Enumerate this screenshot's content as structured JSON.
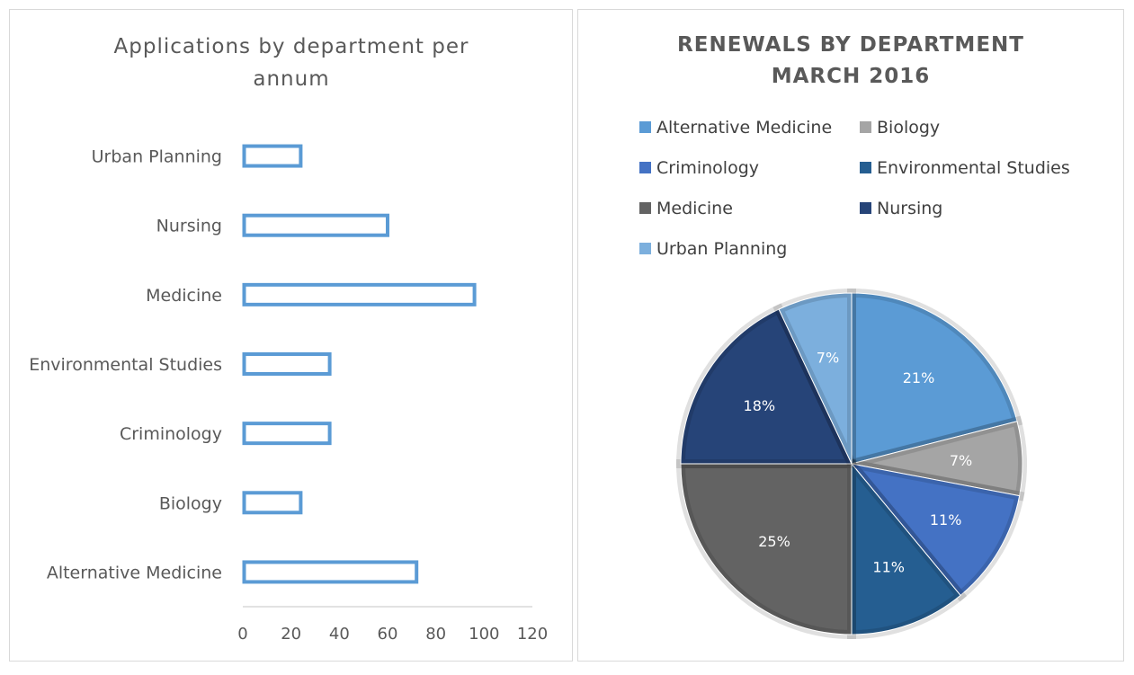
{
  "chart_data": [
    {
      "type": "bar",
      "orientation": "horizontal",
      "title": "Applications by department per annum",
      "categories": [
        "Urban Planning",
        "Nursing",
        "Medicine",
        "Environmental Studies",
        "Criminology",
        "Biology",
        "Alternative Medicine"
      ],
      "values": [
        24,
        60,
        96,
        36,
        36,
        24,
        72
      ],
      "xlim": [
        0,
        120
      ],
      "xticks": [
        0,
        20,
        40,
        60,
        80,
        100,
        120
      ],
      "grid": false,
      "bar_style": "outline",
      "bar_color": "#5b9bd5"
    },
    {
      "type": "pie",
      "title": [
        "RENEWALS BY DEPARTMENT",
        "MARCH 2016"
      ],
      "legend_position": "top",
      "slices": [
        {
          "name": "Alternative Medicine",
          "value": 21,
          "label": "21%",
          "color": "#5b9bd5"
        },
        {
          "name": "Biology",
          "value": 7,
          "label": "7%",
          "color": "#a5a5a5"
        },
        {
          "name": "Criminology",
          "value": 11,
          "label": "11%",
          "color": "#4472c4"
        },
        {
          "name": "Environmental Studies",
          "value": 11,
          "label": "11%",
          "color": "#255e91"
        },
        {
          "name": "Medicine",
          "value": 25,
          "label": "25%",
          "color": "#636363"
        },
        {
          "name": "Nursing",
          "value": 18,
          "label": "18%",
          "color": "#264478"
        },
        {
          "name": "Urban Planning",
          "value": 7,
          "label": "7%",
          "color": "#7cafdd"
        }
      ]
    }
  ]
}
